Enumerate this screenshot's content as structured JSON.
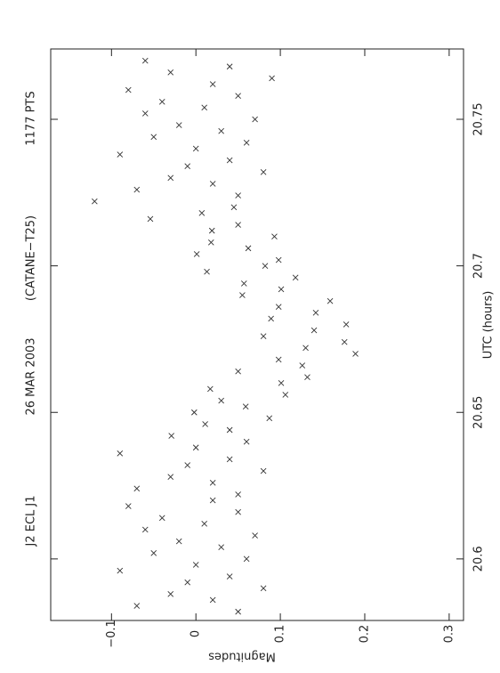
{
  "chart_data": {
    "type": "scatter",
    "title": [
      "J2 ECL J1",
      "26 MAR 2003",
      "(CATANE−T25)",
      "1177 PTS"
    ],
    "x_label": "UTC (hours)",
    "y_label": "Magnitudes",
    "x": [
      20.582,
      20.584,
      20.586,
      20.588,
      20.59,
      20.592,
      20.594,
      20.596,
      20.598,
      20.6,
      20.602,
      20.604,
      20.606,
      20.608,
      20.61,
      20.612,
      20.614,
      20.616,
      20.618,
      20.62,
      20.622,
      20.624,
      20.626,
      20.628,
      20.63,
      20.632,
      20.634,
      20.636,
      20.638,
      20.64,
      20.642,
      20.644,
      20.646,
      20.648,
      20.65,
      20.652,
      20.654,
      20.656,
      20.658,
      20.66,
      20.662,
      20.664,
      20.666,
      20.668,
      20.67,
      20.672,
      20.674,
      20.676,
      20.678,
      20.68,
      20.682,
      20.684,
      20.686,
      20.688,
      20.69,
      20.692,
      20.694,
      20.696,
      20.698,
      20.7,
      20.702,
      20.704,
      20.706,
      20.708,
      20.71,
      20.712,
      20.714,
      20.716,
      20.718,
      20.72,
      20.722,
      20.724,
      20.726,
      20.728,
      20.73,
      20.732,
      20.734,
      20.736,
      20.738,
      20.74,
      20.742,
      20.744,
      20.746,
      20.748,
      20.75,
      20.752,
      20.754,
      20.756,
      20.758,
      20.76,
      20.762,
      20.764,
      20.766,
      20.768,
      20.77
    ],
    "values": [
      0.05,
      -0.07,
      0.02,
      -0.03,
      0.08,
      -0.01,
      0.04,
      -0.09,
      0.0,
      0.06,
      -0.05,
      0.03,
      -0.02,
      0.07,
      -0.06,
      0.01,
      -0.04,
      0.05,
      -0.08,
      0.02,
      0.05,
      -0.07,
      0.02,
      -0.03,
      0.08,
      -0.01,
      0.04,
      -0.09,
      0.0,
      0.06,
      -0.029,
      0.04,
      0.011,
      0.087,
      -0.002,
      0.059,
      0.03,
      0.106,
      0.017,
      0.101,
      0.132,
      0.05,
      0.126,
      0.098,
      0.189,
      0.13,
      0.176,
      0.08,
      0.14,
      0.178,
      0.089,
      0.142,
      0.098,
      0.159,
      0.055,
      0.101,
      0.057,
      0.118,
      0.013,
      0.082,
      0.098,
      0.001,
      0.062,
      0.018,
      0.093,
      0.019,
      0.05,
      -0.054,
      0.007,
      0.045,
      -0.12,
      0.05,
      -0.07,
      0.02,
      -0.03,
      0.08,
      -0.01,
      0.04,
      -0.09,
      0.0,
      0.06,
      -0.05,
      0.03,
      -0.02,
      0.07,
      -0.06,
      0.01,
      -0.04,
      0.05,
      -0.08,
      0.02,
      0.09,
      -0.03,
      0.04,
      -0.06
    ],
    "color": "#333333",
    "xlim": [
      20.579,
      20.774
    ],
    "xticks": [
      20.6,
      20.65,
      20.7,
      20.75
    ],
    "ylim": [
      -0.172,
      0.317
    ],
    "yticks": [
      {
        "value": -0.1,
        "label": "−0.1"
      },
      0,
      0.1,
      0.2,
      0.3
    ]
  }
}
